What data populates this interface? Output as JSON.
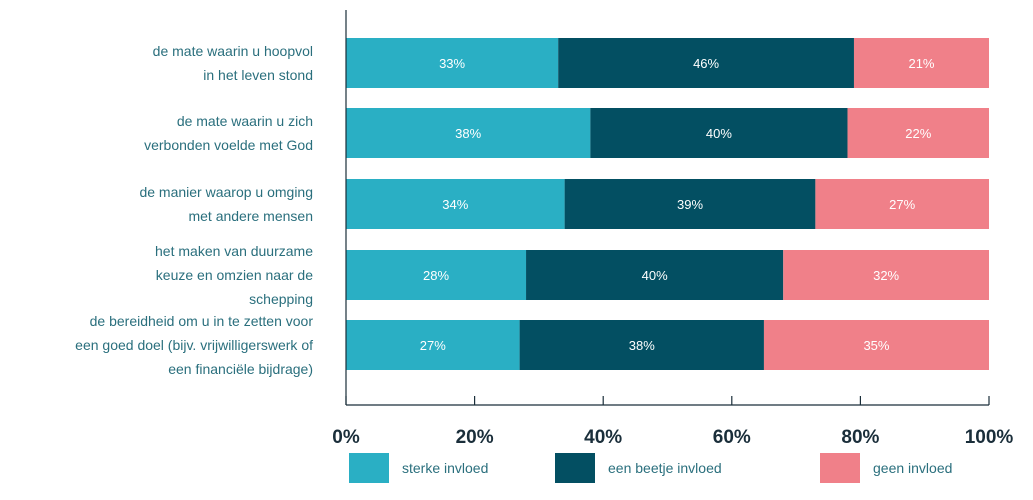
{
  "chart_data": {
    "type": "bar",
    "orientation": "horizontal",
    "stacked": true,
    "categories": [
      [
        "de mate waarin u hoopvol",
        "in het leven stond"
      ],
      [
        "de mate waarin u zich",
        "verbonden voelde met God"
      ],
      [
        "de manier waarop u omging",
        "met andere mensen"
      ],
      [
        "het maken van duurzame",
        "keuze en omzien naar de",
        "schepping"
      ],
      [
        "de bereidheid om u in te zetten voor",
        "een goed doel (bijv. vrijwilligerswerk of",
        "een financiële bijdrage)"
      ]
    ],
    "series": [
      {
        "name": "sterke invloed",
        "color": "#2aafc4",
        "values": [
          33,
          38,
          34,
          28,
          27
        ]
      },
      {
        "name": "een beetje invloed",
        "color": "#034f62",
        "values": [
          46,
          40,
          39,
          40,
          38
        ]
      },
      {
        "name": "geen invloed",
        "color": "#f08089",
        "values": [
          21,
          22,
          27,
          32,
          35
        ]
      }
    ],
    "value_suffix": "%",
    "xlim": [
      0,
      100
    ],
    "xticks": [
      "0%",
      "20%",
      "40%",
      "60%",
      "80%",
      "100%"
    ],
    "legend_position": "bottom",
    "grid": false
  }
}
